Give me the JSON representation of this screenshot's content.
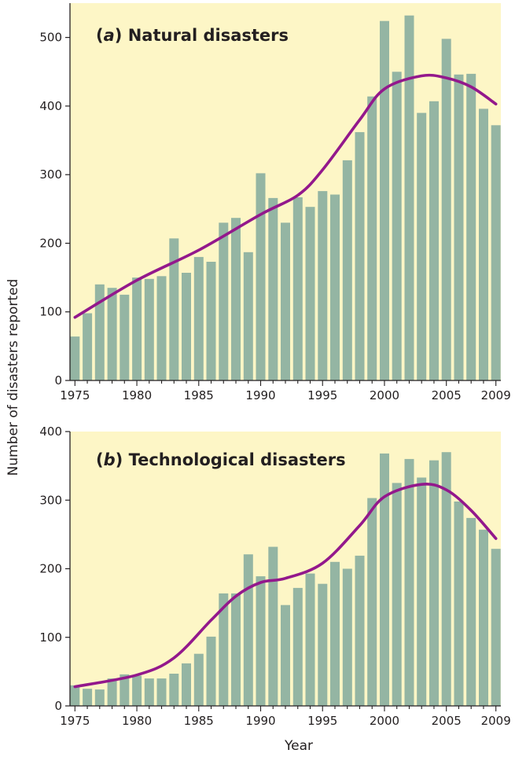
{
  "colors": {
    "background": "#fdf6c6",
    "bar": "#94b5a3",
    "curve": "#93188c",
    "axis": "#231f20"
  },
  "ylabel": "Number of disasters reported",
  "xlabel": "Year",
  "chart_data": [
    {
      "type": "bar",
      "panel_letter": "a",
      "title": "Natural disasters",
      "x": [
        1975,
        1976,
        1977,
        1978,
        1979,
        1980,
        1981,
        1982,
        1983,
        1984,
        1985,
        1986,
        1987,
        1988,
        1989,
        1990,
        1991,
        1992,
        1993,
        1994,
        1995,
        1996,
        1997,
        1998,
        1999,
        2000,
        2001,
        2002,
        2003,
        2004,
        2005,
        2006,
        2007,
        2008,
        2009
      ],
      "values": [
        64,
        98,
        140,
        135,
        125,
        150,
        148,
        152,
        207,
        157,
        180,
        173,
        230,
        237,
        187,
        302,
        266,
        230,
        267,
        253,
        276,
        271,
        321,
        362,
        414,
        524,
        450,
        532,
        390,
        407,
        498,
        446,
        447,
        396,
        372
      ],
      "trend": [
        [
          1975,
          92
        ],
        [
          1980,
          146
        ],
        [
          1985,
          190
        ],
        [
          1990,
          242
        ],
        [
          1993,
          270
        ],
        [
          1995,
          307
        ],
        [
          1998,
          380
        ],
        [
          2000,
          425
        ],
        [
          2003,
          444
        ],
        [
          2005,
          441
        ],
        [
          2007,
          428
        ],
        [
          2009,
          403
        ]
      ],
      "xticks": [
        1975,
        1980,
        1985,
        1990,
        1995,
        2000,
        2005,
        2009
      ],
      "yticks": [
        0,
        100,
        200,
        300,
        400,
        500
      ],
      "xlim": [
        1974.6,
        2009.4
      ],
      "ylim": [
        0,
        550
      ]
    },
    {
      "type": "bar",
      "panel_letter": "b",
      "title": "Technological disasters",
      "x": [
        1975,
        1976,
        1977,
        1978,
        1979,
        1980,
        1981,
        1982,
        1983,
        1984,
        1985,
        1986,
        1987,
        1988,
        1989,
        1990,
        1991,
        1992,
        1993,
        1994,
        1995,
        1996,
        1997,
        1998,
        1999,
        2000,
        2001,
        2002,
        2003,
        2004,
        2005,
        2006,
        2007,
        2008,
        2009
      ],
      "values": [
        30,
        25,
        24,
        40,
        46,
        44,
        40,
        40,
        47,
        62,
        76,
        101,
        164,
        164,
        221,
        189,
        232,
        147,
        172,
        193,
        178,
        210,
        200,
        219,
        303,
        368,
        325,
        360,
        333,
        358,
        370,
        298,
        274,
        257,
        229
      ],
      "trend": [
        [
          1975,
          28
        ],
        [
          1980,
          45
        ],
        [
          1983,
          70
        ],
        [
          1986,
          125
        ],
        [
          1988,
          160
        ],
        [
          1990,
          180
        ],
        [
          1992,
          186
        ],
        [
          1995,
          208
        ],
        [
          1998,
          263
        ],
        [
          2000,
          305
        ],
        [
          2003,
          323
        ],
        [
          2005,
          315
        ],
        [
          2007,
          285
        ],
        [
          2009,
          244
        ]
      ],
      "xticks": [
        1975,
        1980,
        1985,
        1990,
        1995,
        2000,
        2005,
        2009
      ],
      "yticks": [
        0,
        100,
        200,
        300,
        400
      ],
      "xlim": [
        1974.6,
        2009.4
      ],
      "ylim": [
        0,
        400
      ]
    }
  ]
}
